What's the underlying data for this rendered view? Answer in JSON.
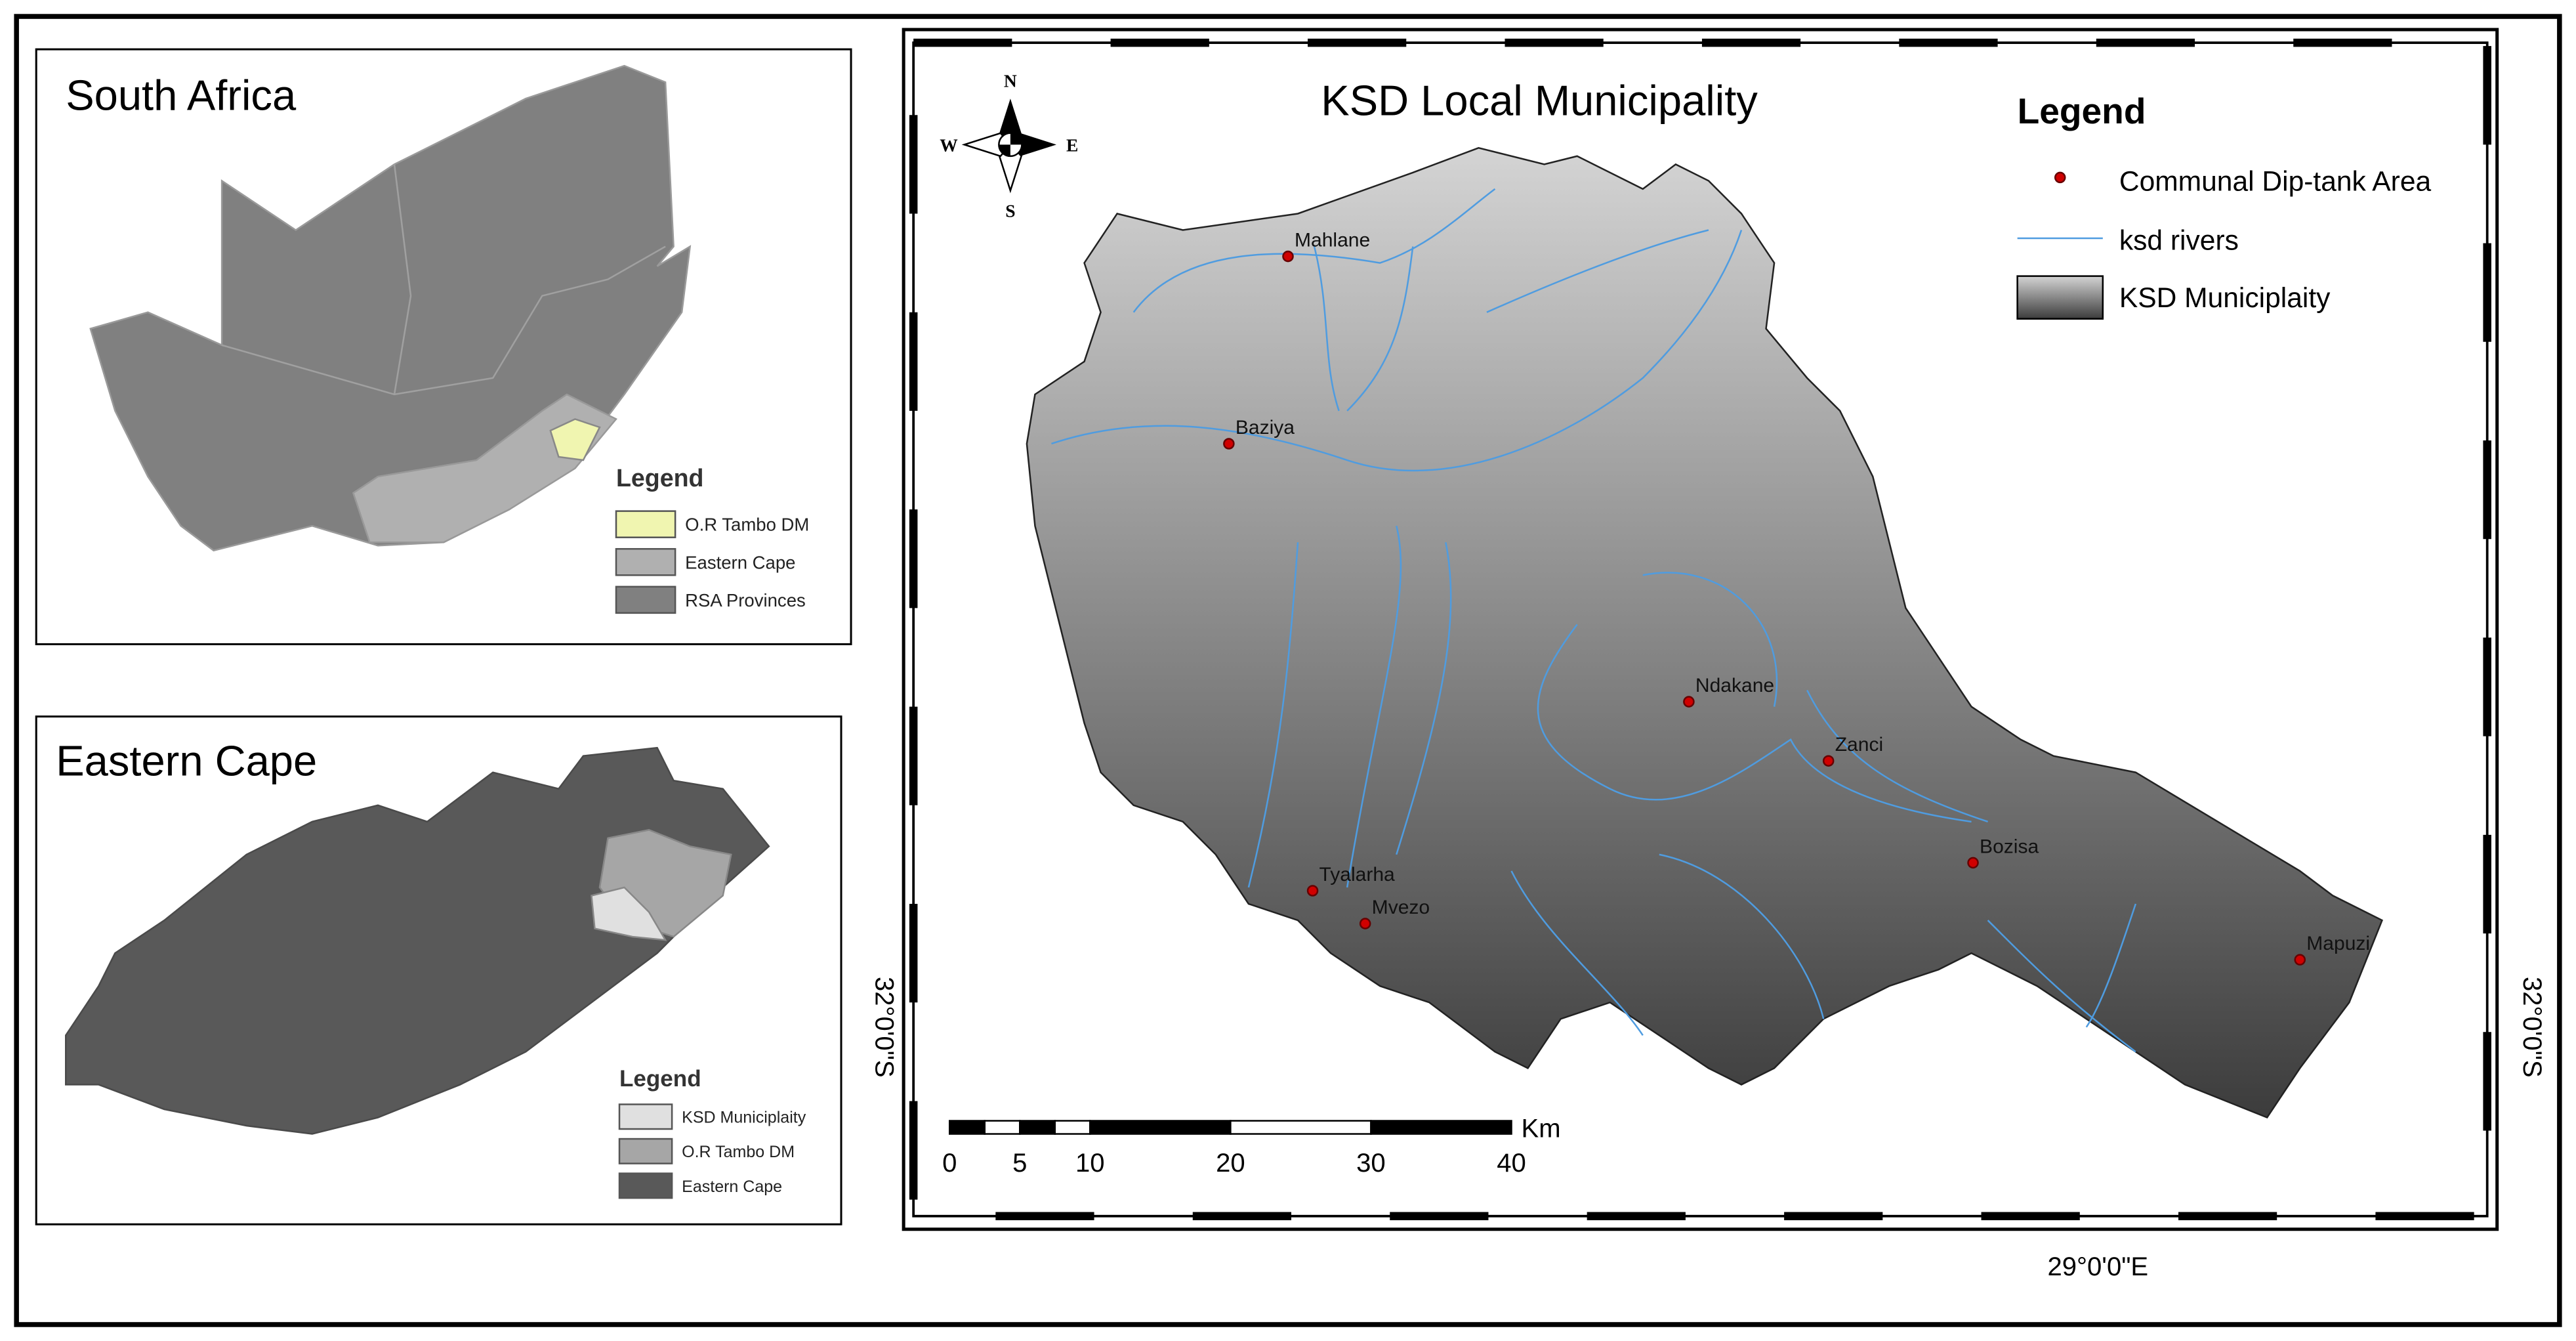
{
  "insets": [
    {
      "title": "South Africa",
      "legend": {
        "title": "Legend",
        "items": [
          "O.R Tambo DM",
          "Eastern Cape",
          "RSA Provinces"
        ]
      }
    },
    {
      "title": "Eastern Cape",
      "legend": {
        "title": "Legend",
        "items": [
          "KSD Municiplaity",
          "O.R Tambo DM",
          "Eastern Cape"
        ]
      }
    }
  ],
  "main": {
    "title": "KSD Local Municipality",
    "compass": {
      "north": "N",
      "east": "E",
      "south": "S",
      "west": "W"
    },
    "legend": {
      "title": "Legend",
      "items": [
        "Communal Dip-tank Area",
        "ksd rivers",
        "KSD Municiplaity"
      ]
    },
    "places": [
      "Mahlane",
      "Baziya",
      "Ndakane",
      "Zanci",
      "Bozisa",
      "Tyalarha",
      "Mvezo",
      "Mapuzi"
    ],
    "scale_bar": {
      "unit": "Km",
      "ticks": [
        0,
        5,
        10,
        20,
        30,
        40
      ]
    },
    "latitude_label": "32°0'0\"S",
    "longitude_label": "29°0'0\"E"
  }
}
